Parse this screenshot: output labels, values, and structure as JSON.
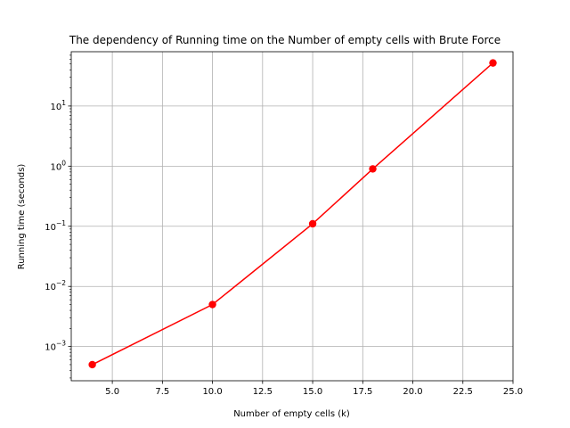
{
  "chart_data": {
    "type": "line",
    "title": "The dependency of Running time on the Number of empty cells with Brute Force",
    "xlabel": "Number of empty cells (k)",
    "ylabel": "Running time (seconds)",
    "xlim": [
      2.95,
      25.0
    ],
    "ylim": [
      0.00027,
      80
    ],
    "yscale": "log",
    "grid": true,
    "x": [
      4,
      10,
      15,
      18,
      24
    ],
    "series": [
      {
        "values": [
          0.0005,
          0.005,
          0.11,
          0.9,
          52
        ],
        "color": "#ff0000"
      }
    ],
    "xticks": [
      5.0,
      7.5,
      10.0,
      12.5,
      15.0,
      17.5,
      20.0,
      22.5,
      25.0
    ],
    "xtick_labels": [
      "5.0",
      "7.5",
      "10.0",
      "12.5",
      "15.0",
      "17.5",
      "20.0",
      "22.5",
      "25.0"
    ],
    "yticks": [
      0.001,
      0.01,
      0.1,
      1,
      10
    ],
    "ytick_labels": [
      {
        "base": "10",
        "exp": "−3"
      },
      {
        "base": "10",
        "exp": "−2"
      },
      {
        "base": "10",
        "exp": "−1"
      },
      {
        "base": "10",
        "exp": "0"
      },
      {
        "base": "10",
        "exp": "1"
      }
    ]
  }
}
